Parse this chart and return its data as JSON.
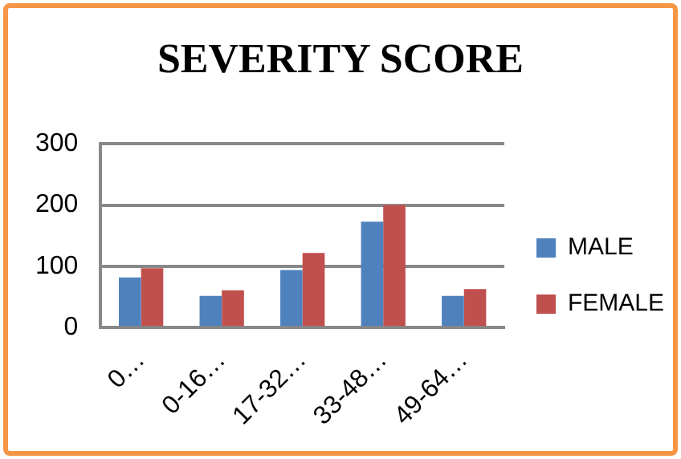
{
  "chart_data": {
    "type": "bar",
    "title": "SEVERITY SCORE",
    "categories": [
      "0…",
      "0-16…",
      "17-32…",
      "33-48…",
      "49-64…"
    ],
    "series": [
      {
        "name": "MALE",
        "color": "#4f81bd",
        "values": [
          82,
          52,
          94,
          173,
          52
        ]
      },
      {
        "name": "FEMALE",
        "color": "#c0504d",
        "values": [
          97,
          61,
          122,
          200,
          63
        ]
      }
    ],
    "ylim": [
      0,
      300
    ],
    "yticks": [
      0,
      100,
      200,
      300
    ],
    "grid": "y",
    "legend": "right"
  }
}
